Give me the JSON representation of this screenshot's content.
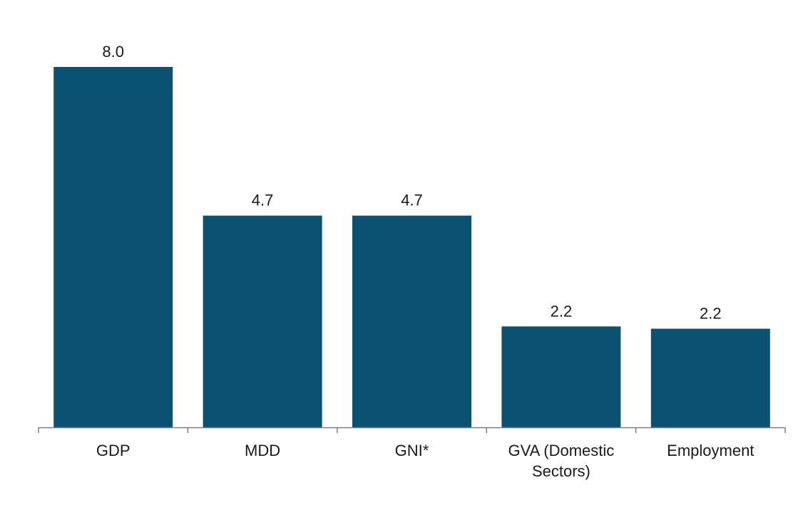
{
  "chart_data": {
    "type": "bar",
    "categories": [
      "GDP",
      "MDD",
      "GNI*",
      "GVA (Domestic Sectors)",
      "Employment"
    ],
    "category_label_lines": [
      [
        "GDP"
      ],
      [
        "MDD"
      ],
      [
        "GNI*"
      ],
      [
        "GVA (Domestic",
        "Sectors)"
      ],
      [
        "Employment"
      ]
    ],
    "values": [
      8.0,
      4.7,
      4.7,
      2.2,
      2.2
    ],
    "value_labels": [
      "8.0",
      "4.7",
      "4.7",
      "2.2",
      "2.2"
    ],
    "plot_values": [
      8.0,
      4.7,
      4.7,
      2.24,
      2.19
    ],
    "title": "",
    "xlabel": "",
    "ylabel": "",
    "ylim": [
      0,
      8.0
    ],
    "grid": false,
    "legend": "none",
    "bar_color": "#0b5270",
    "axis_color": "#7f7f7f",
    "text_color": "#1a1a1a"
  }
}
